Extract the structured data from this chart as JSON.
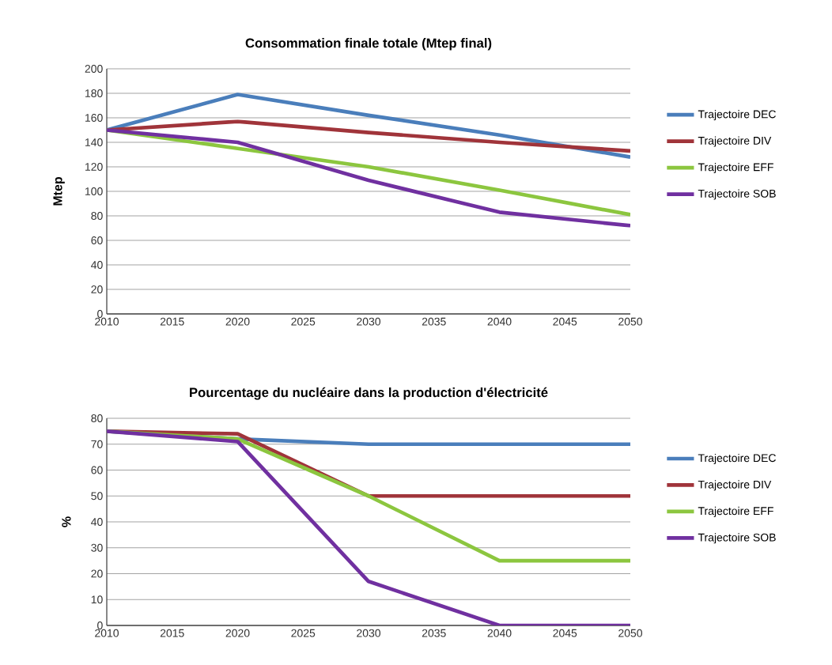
{
  "chart_data": [
    {
      "type": "line",
      "title": "Consommation finale totale (Mtep final)",
      "ylabel": "Mtep",
      "x": [
        2010,
        2020,
        2030,
        2040,
        2050
      ],
      "xlim": [
        2010,
        2050
      ],
      "xticks": [
        2010,
        2015,
        2020,
        2025,
        2030,
        2035,
        2040,
        2045,
        2050
      ],
      "ylim": [
        0,
        200
      ],
      "yticks": [
        0,
        20,
        40,
        60,
        80,
        100,
        120,
        140,
        160,
        180,
        200
      ],
      "grid": "y",
      "legend": "right",
      "series": [
        {
          "name": "Trajectoire DEC",
          "color": "#4a7ebb",
          "values": [
            150,
            179,
            162,
            146,
            128
          ]
        },
        {
          "name": "Trajectoire DIV",
          "color": "#a0343a",
          "values": [
            150,
            157,
            148,
            140,
            133
          ]
        },
        {
          "name": "Trajectoire EFF",
          "color": "#8cc63f",
          "values": [
            150,
            135,
            120,
            101,
            81
          ]
        },
        {
          "name": "Trajectoire SOB",
          "color": "#7030a0",
          "values": [
            150,
            140,
            109,
            83,
            72
          ]
        }
      ]
    },
    {
      "type": "line",
      "title": "Pourcentage du nucléaire dans la production d'électricité",
      "ylabel": "%",
      "x": [
        2010,
        2020,
        2030,
        2040,
        2050
      ],
      "xlim": [
        2010,
        2050
      ],
      "xticks": [
        2010,
        2015,
        2020,
        2025,
        2030,
        2035,
        2040,
        2045,
        2050
      ],
      "ylim": [
        0,
        80
      ],
      "yticks": [
        0,
        10,
        20,
        30,
        40,
        50,
        60,
        70,
        80
      ],
      "grid": "y",
      "legend": "right",
      "series": [
        {
          "name": "Trajectoire DEC",
          "color": "#4a7ebb",
          "values": [
            75,
            72,
            70,
            70,
            70
          ]
        },
        {
          "name": "Trajectoire DIV",
          "color": "#a0343a",
          "values": [
            75,
            74,
            50,
            50,
            50
          ]
        },
        {
          "name": "Trajectoire EFF",
          "color": "#8cc63f",
          "values": [
            75,
            72,
            50,
            25,
            25
          ]
        },
        {
          "name": "Trajectoire SOB",
          "color": "#7030a0",
          "values": [
            75,
            71,
            17,
            0,
            0
          ]
        }
      ]
    }
  ]
}
